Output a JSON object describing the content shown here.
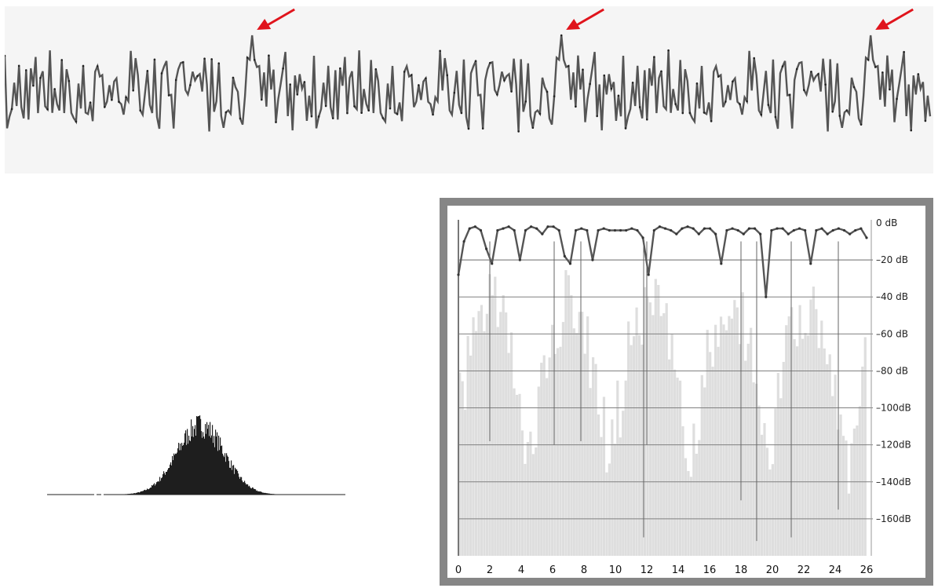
{
  "colors": {
    "waveform": "#555555",
    "panel_bg": "#f5f5f5",
    "arrow": "#e0141c",
    "histogram": "#1e1e1e",
    "spectrum_fill": "#dedede",
    "spectrum_line": "#555555",
    "frame": "#868686",
    "grid": "#808080"
  },
  "chart_data": [
    {
      "type": "line",
      "annotations": [
        "peak-arrow",
        "peak-arrow",
        "peak-arrow"
      ],
      "periods": 3,
      "grid": false
    },
    {
      "type": "bar",
      "shape": "bell-shaped distribution",
      "grid": false
    },
    {
      "type": "area",
      "x_ticks": [
        "0",
        "2",
        "4",
        "6",
        "8",
        "10",
        "12",
        "14",
        "16",
        "18",
        "20",
        "22",
        "24",
        "26"
      ],
      "xlim": [
        0,
        26
      ],
      "y_ticks": [
        "0  dB",
        "–20  dB",
        "–40  dB",
        "–60  dB",
        "–80  dB",
        "–100dB",
        "–120dB",
        "–140dB",
        "–160dB"
      ],
      "ylim": [
        -180,
        0
      ],
      "grid": true,
      "envelope_db": [
        -28,
        -10,
        -3,
        -2,
        -4,
        -14,
        -22,
        -4,
        -3,
        -2,
        -4,
        -20,
        -4,
        -2,
        -3,
        -6,
        -2,
        -2,
        -4,
        -18,
        -22,
        -4,
        -3,
        -4,
        -20,
        -4,
        -3,
        -4,
        -4,
        -4,
        -4,
        -3,
        -4,
        -8,
        -28,
        -4,
        -2,
        -3,
        -4,
        -6,
        -3,
        -2,
        -3,
        -6,
        -3,
        -3,
        -6,
        -22,
        -4,
        -3,
        -4,
        -6,
        -3,
        -3,
        -6,
        -40,
        -4,
        -3,
        -3,
        -6,
        -4,
        -3,
        -4,
        -22,
        -4,
        -3,
        -6,
        -4,
        -3,
        -4,
        -6,
        -4,
        -3,
        -8
      ]
    }
  ]
}
